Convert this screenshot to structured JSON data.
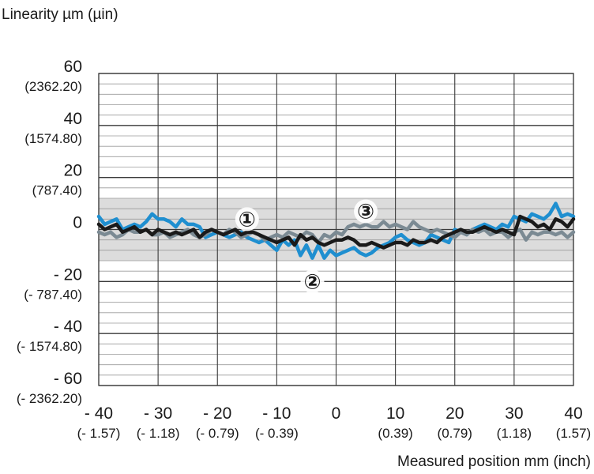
{
  "chart_data": {
    "type": "line",
    "ylabel": "Linearity µm (µin)",
    "xlabel": "Measured position mm (inch)",
    "xlim": [
      -40,
      40
    ],
    "ylim": [
      -60,
      60
    ],
    "x_ticks": [
      {
        "main": "- 40",
        "sub": "(- 1.57)"
      },
      {
        "main": "- 30",
        "sub": "(- 1.18)"
      },
      {
        "main": "- 20",
        "sub": "(- 0.79)"
      },
      {
        "main": "- 10",
        "sub": "(- 0.39)"
      },
      {
        "main": "0",
        "sub": ""
      },
      {
        "main": "10",
        "sub": "(0.39)"
      },
      {
        "main": "20",
        "sub": "(0.79)"
      },
      {
        "main": "30",
        "sub": "(1.18)"
      },
      {
        "main": "40",
        "sub": "(1.57)"
      }
    ],
    "y_ticks": [
      {
        "main": "60",
        "sub": "(2362.20)"
      },
      {
        "main": "40",
        "sub": "(1574.80)"
      },
      {
        "main": "20",
        "sub": "(787.40)"
      },
      {
        "main": "0",
        "sub": ""
      },
      {
        "main": "- 20",
        "sub": "(- 787.40)"
      },
      {
        "main": "- 40",
        "sub": "(- 1574.80)"
      },
      {
        "main": "- 60",
        "sub": "(- 2362.20)"
      }
    ],
    "tolerance_band": [
      -12,
      12
    ],
    "grid": true,
    "series": [
      {
        "color": "#1f8fd0",
        "marker": "②",
        "marker_at": [
          -4,
          -20
        ],
        "x": [
          -40,
          -39,
          -38,
          -37,
          -36,
          -35,
          -34,
          -33,
          -32,
          -31,
          -30,
          -29,
          -28,
          -27,
          -26,
          -25,
          -24,
          -23,
          -22,
          -21,
          -20,
          -19,
          -18,
          -17,
          -16,
          -15,
          -14,
          -13,
          -12,
          -11,
          -10,
          -9,
          -8,
          -7,
          -6,
          -5,
          -4,
          -3,
          -2,
          -1,
          0,
          1,
          2,
          3,
          4,
          5,
          6,
          7,
          8,
          9,
          10,
          11,
          12,
          13,
          14,
          15,
          16,
          17,
          18,
          19,
          20,
          21,
          22,
          23,
          24,
          25,
          26,
          27,
          28,
          29,
          30,
          31,
          32,
          33,
          34,
          35,
          36,
          37,
          38,
          39,
          40
        ],
        "y": [
          5,
          2,
          3,
          4,
          0,
          1,
          2,
          1,
          3,
          6,
          4,
          4,
          3,
          1,
          4,
          2,
          2,
          1,
          -3,
          -2,
          -1,
          -2,
          -3,
          -2,
          -1,
          -3,
          -4,
          -5,
          -4,
          -6,
          -8,
          -4,
          -6,
          -4,
          -10,
          -6,
          -11,
          -6,
          -11,
          -8,
          -10,
          -9,
          -8,
          -7,
          -9,
          -10,
          -9,
          -7,
          -6,
          -5,
          -3,
          -2,
          -4,
          -5,
          -6,
          -5,
          -2,
          -3,
          -4,
          -5,
          0,
          -1,
          -2,
          0,
          1,
          2,
          1,
          0,
          2,
          1,
          5,
          4,
          3,
          6,
          5,
          4,
          6,
          10,
          5,
          6,
          5
        ]
      },
      {
        "color": "#7b8a93",
        "marker": "③",
        "marker_at": [
          5,
          7
        ],
        "x": [
          -40,
          -39,
          -38,
          -37,
          -36,
          -35,
          -34,
          -33,
          -32,
          -31,
          -30,
          -29,
          -28,
          -27,
          -26,
          -25,
          -24,
          -23,
          -22,
          -21,
          -20,
          -19,
          -18,
          -17,
          -16,
          -15,
          -14,
          -13,
          -12,
          -11,
          -10,
          -9,
          -8,
          -7,
          -6,
          -5,
          -4,
          -3,
          -2,
          -1,
          0,
          1,
          2,
          3,
          4,
          5,
          6,
          7,
          8,
          9,
          10,
          11,
          12,
          13,
          14,
          15,
          16,
          17,
          18,
          19,
          20,
          21,
          22,
          23,
          24,
          25,
          26,
          27,
          28,
          29,
          30,
          31,
          32,
          33,
          34,
          35,
          36,
          37,
          38,
          39,
          40
        ],
        "y": [
          -1,
          -2,
          -1,
          -3,
          -2,
          0,
          -1,
          -1,
          0,
          -2,
          -2,
          -1,
          -3,
          -2,
          -1,
          0,
          -2,
          -3,
          -2,
          0,
          -1,
          -2,
          0,
          -1,
          -3,
          -2,
          -1,
          -2,
          -4,
          -3,
          -2,
          -3,
          -1,
          -2,
          -3,
          -1,
          -2,
          -5,
          -2,
          -3,
          -1,
          -2,
          1,
          2,
          1,
          2,
          1,
          1,
          3,
          1,
          2,
          1,
          0,
          3,
          1,
          0,
          -1,
          0,
          -1,
          -2,
          -3,
          -1,
          -2,
          0,
          -1,
          0,
          -2,
          -1,
          -1,
          -3,
          -1,
          0,
          -4,
          -1,
          -2,
          -1,
          -1,
          -2,
          -1,
          -3,
          -1
        ]
      },
      {
        "color": "#1a1a1a",
        "marker": "①",
        "marker_at": [
          -15,
          4
        ],
        "x": [
          -40,
          -39,
          -38,
          -37,
          -36,
          -35,
          -34,
          -33,
          -32,
          -31,
          -30,
          -29,
          -28,
          -27,
          -26,
          -25,
          -24,
          -23,
          -22,
          -21,
          -20,
          -19,
          -18,
          -17,
          -16,
          -15,
          -14,
          -13,
          -12,
          -11,
          -10,
          -9,
          -8,
          -7,
          -6,
          -5,
          -4,
          -3,
          -2,
          -1,
          0,
          1,
          2,
          3,
          4,
          5,
          6,
          7,
          8,
          9,
          10,
          11,
          12,
          13,
          14,
          15,
          16,
          17,
          18,
          19,
          20,
          21,
          22,
          23,
          24,
          25,
          26,
          27,
          28,
          29,
          30,
          31,
          32,
          33,
          34,
          35,
          36,
          37,
          38,
          39,
          40
        ],
        "y": [
          2,
          0,
          1,
          2,
          -1,
          0,
          1,
          -1,
          0,
          -2,
          0,
          -1,
          -2,
          -1,
          -2,
          -1,
          0,
          -3,
          -1,
          0,
          -1,
          -2,
          -1,
          0,
          -2,
          -1,
          -1,
          -2,
          -3,
          -4,
          -5,
          -4,
          -3,
          -6,
          -2,
          -4,
          -3,
          -5,
          -6,
          -5,
          -4,
          -4,
          -3,
          -4,
          -6,
          -6,
          -5,
          -6,
          -7,
          -6,
          -5,
          -5,
          -6,
          -4,
          -5,
          -5,
          -4,
          -5,
          -3,
          -2,
          -1,
          0,
          -1,
          -1,
          0,
          1,
          0,
          -1,
          0,
          -1,
          -2,
          5,
          4,
          3,
          1,
          2,
          0,
          4,
          3,
          1,
          4
        ]
      }
    ]
  }
}
